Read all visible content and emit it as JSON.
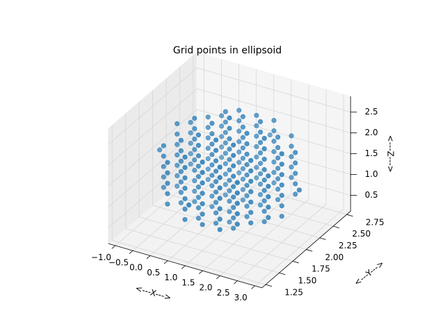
{
  "chart_data": {
    "type": "scatter3d",
    "title": "Grid points in ellipsoid",
    "xlabel": "<---X--->",
    "ylabel": "<---Y--->",
    "zlabel": "<---Z--->",
    "color": "#1f77b4",
    "xlim": [
      -1.2,
      3.2
    ],
    "ylim": [
      1.18,
      2.82
    ],
    "zlim": [
      0.12,
      2.88
    ],
    "xticks": [
      {
        "value": -1,
        "label": "−1.0"
      },
      {
        "value": -0.5,
        "label": "−0.5"
      },
      {
        "value": 0,
        "label": "0.0"
      },
      0.5,
      {
        "value": 1,
        "label": "1.0"
      },
      1.5,
      {
        "value": 2,
        "label": "2.0"
      },
      2.5,
      {
        "value": 3,
        "label": "3.0"
      }
    ],
    "yticks": [
      1.25,
      {
        "value": 1.5,
        "label": "1.50"
      },
      1.75,
      {
        "value": 2,
        "label": "2.00"
      },
      2.25,
      {
        "value": 2.5,
        "label": "2.50"
      },
      2.75
    ],
    "zticks": [
      0.5,
      {
        "value": 1,
        "label": "1.0"
      },
      1.5,
      {
        "value": 2,
        "label": "2.0"
      },
      2.5
    ],
    "grid": true,
    "x": [
      1,
      0,
      0,
      0,
      0,
      0,
      0.5,
      0.5,
      0.5,
      0.5,
      0.5,
      0.5,
      0.5,
      1,
      1,
      1,
      1,
      1,
      1,
      1,
      1.5,
      1.5,
      1.5,
      1.5,
      1.5,
      1.5,
      1.5,
      2,
      2,
      2,
      2,
      2,
      -0.5,
      -0.5,
      -0.5,
      -0.5,
      -0.5,
      0,
      0,
      0,
      0,
      0,
      0,
      0,
      0.5,
      0.5,
      0.5,
      0.5,
      0.5,
      0.5,
      0.5,
      0.5,
      0.5,
      1,
      1,
      1,
      1,
      1,
      1,
      1,
      1,
      1,
      1.5,
      1.5,
      1.5,
      1.5,
      1.5,
      1.5,
      1.5,
      1.5,
      1.5,
      2,
      2,
      2,
      2,
      2,
      2,
      2,
      2.5,
      2.5,
      2.5,
      2.5,
      2.5,
      -1,
      -0.5,
      -0.5,
      -0.5,
      -0.5,
      -0.5,
      -0.5,
      -0.5,
      0,
      0,
      0,
      0,
      0,
      0,
      0,
      0,
      0,
      0.5,
      0.5,
      0.5,
      0.5,
      0.5,
      0.5,
      0.5,
      0.5,
      0.5,
      1,
      1,
      1,
      1,
      1,
      1,
      1,
      1,
      1,
      1,
      1,
      1.5,
      1.5,
      1.5,
      1.5,
      1.5,
      1.5,
      1.5,
      1.5,
      1.5,
      2,
      2,
      2,
      2,
      2,
      2,
      2,
      2,
      2,
      2.5,
      2.5,
      2.5,
      2.5,
      2.5,
      2.5,
      2.5,
      3,
      -0.5,
      -0.5,
      -0.5,
      -0.5,
      -0.5,
      0,
      0,
      0,
      0,
      0,
      0,
      0,
      0.5,
      0.5,
      0.5,
      0.5,
      0.5,
      0.5,
      0.5,
      0.5,
      0.5,
      1,
      1,
      1,
      1,
      1,
      1,
      1,
      1,
      1,
      1.5,
      1.5,
      1.5,
      1.5,
      1.5,
      1.5,
      1.5,
      1.5,
      1.5,
      2,
      2,
      2,
      2,
      2,
      2,
      2,
      2.5,
      2.5,
      2.5,
      2.5,
      2.5,
      0,
      0,
      0,
      0,
      0,
      0.5,
      0.5,
      0.5,
      0.5,
      0.5,
      0.5,
      0.5,
      1,
      1,
      1,
      1,
      1,
      1,
      1,
      1.5,
      1.5,
      1.5,
      1.5,
      1.5,
      1.5,
      1.5,
      2,
      2,
      2,
      2,
      2,
      1
    ],
    "y": [
      1.25,
      1.5,
      1.5,
      1.5,
      1.5,
      1.5,
      1.5,
      1.5,
      1.5,
      1.5,
      1.5,
      1.5,
      1.5,
      1.5,
      1.5,
      1.5,
      1.5,
      1.5,
      1.5,
      1.5,
      1.5,
      1.5,
      1.5,
      1.5,
      1.5,
      1.5,
      1.5,
      1.5,
      1.5,
      1.5,
      1.5,
      1.5,
      1.75,
      1.75,
      1.75,
      1.75,
      1.75,
      1.75,
      1.75,
      1.75,
      1.75,
      1.75,
      1.75,
      1.75,
      1.75,
      1.75,
      1.75,
      1.75,
      1.75,
      1.75,
      1.75,
      1.75,
      1.75,
      1.75,
      1.75,
      1.75,
      1.75,
      1.75,
      1.75,
      1.75,
      1.75,
      1.75,
      1.75,
      1.75,
      1.75,
      1.75,
      1.75,
      1.75,
      1.75,
      1.75,
      1.75,
      1.75,
      1.75,
      1.75,
      1.75,
      1.75,
      1.75,
      1.75,
      1.75,
      1.75,
      1.75,
      1.75,
      1.75,
      2,
      2,
      2,
      2,
      2,
      2,
      2,
      2,
      2,
      2,
      2,
      2,
      2,
      2,
      2,
      2,
      2,
      2,
      2,
      2,
      2,
      2,
      2,
      2,
      2,
      2,
      2,
      2,
      2,
      2,
      2,
      2,
      2,
      2,
      2,
      2,
      2,
      2,
      2,
      2,
      2,
      2,
      2,
      2,
      2,
      2,
      2,
      2,
      2,
      2,
      2,
      2,
      2,
      2,
      2,
      2,
      2,
      2,
      2,
      2,
      2,
      2,
      2,
      2.25,
      2.25,
      2.25,
      2.25,
      2.25,
      2.25,
      2.25,
      2.25,
      2.25,
      2.25,
      2.25,
      2.25,
      2.25,
      2.25,
      2.25,
      2.25,
      2.25,
      2.25,
      2.25,
      2.25,
      2.25,
      2.25,
      2.25,
      2.25,
      2.25,
      2.25,
      2.25,
      2.25,
      2.25,
      2.25,
      2.25,
      2.25,
      2.25,
      2.25,
      2.25,
      2.25,
      2.25,
      2.25,
      2.25,
      2.25,
      2.25,
      2.25,
      2.25,
      2.25,
      2.25,
      2.25,
      2.25,
      2.25,
      2.25,
      2.25,
      2.25,
      2.5,
      2.5,
      2.5,
      2.5,
      2.5,
      2.5,
      2.5,
      2.5,
      2.5,
      2.5,
      2.5,
      2.5,
      2.5,
      2.5,
      2.5,
      2.5,
      2.5,
      2.5,
      2.5,
      2.5,
      2.5,
      2.5,
      2.5,
      2.5,
      2.5,
      2.5,
      2.5,
      2.5,
      2.5,
      2.5,
      2.5,
      2.75
    ],
    "z": [
      1.5,
      1,
      1.25,
      1.5,
      1.75,
      2,
      0.75,
      1,
      1.25,
      1.5,
      1.75,
      2,
      2.25,
      0.75,
      1,
      1.25,
      1.5,
      1.75,
      2,
      2.25,
      0.75,
      1,
      1.25,
      1.5,
      1.75,
      2,
      2.25,
      1,
      1.25,
      1.5,
      1.75,
      2,
      1,
      1.25,
      1.5,
      1.75,
      2,
      0.75,
      1,
      1.25,
      1.5,
      1.75,
      2,
      2.25,
      0.5,
      0.75,
      1,
      1.25,
      1.5,
      1.75,
      2,
      2.25,
      2.5,
      0.5,
      0.75,
      1,
      1.25,
      1.5,
      1.75,
      2,
      2.25,
      2.5,
      0.5,
      0.75,
      1,
      1.25,
      1.5,
      1.75,
      2,
      2.25,
      2.5,
      0.75,
      1,
      1.25,
      1.5,
      1.75,
      2,
      2.25,
      1,
      1.25,
      1.5,
      1.75,
      2,
      1.5,
      0.75,
      1,
      1.25,
      1.5,
      1.75,
      2,
      2.25,
      0.5,
      0.75,
      1,
      1.25,
      1.5,
      1.75,
      2,
      2.25,
      2.5,
      0.5,
      0.75,
      1,
      1.25,
      1.5,
      1.75,
      2,
      2.25,
      2.5,
      0.25,
      0.5,
      0.75,
      1,
      1.25,
      1.5,
      1.75,
      2,
      2.25,
      2.5,
      2.75,
      0.5,
      0.75,
      1,
      1.25,
      1.5,
      1.75,
      2,
      2.25,
      2.5,
      0.5,
      0.75,
      1,
      1.25,
      1.5,
      1.75,
      2,
      2.25,
      2.5,
      0.75,
      1,
      1.25,
      1.5,
      1.75,
      2,
      2.25,
      1.5,
      1,
      1.25,
      1.5,
      1.75,
      2,
      0.75,
      1,
      1.25,
      1.5,
      1.75,
      2,
      2.25,
      0.5,
      0.75,
      1,
      1.25,
      1.5,
      1.75,
      2,
      2.25,
      2.5,
      0.5,
      0.75,
      1,
      1.25,
      1.5,
      1.75,
      2,
      2.25,
      2.5,
      0.5,
      0.75,
      1,
      1.25,
      1.5,
      1.75,
      2,
      2.25,
      2.5,
      0.75,
      1,
      1.25,
      1.5,
      1.75,
      2,
      2.25,
      1,
      1.25,
      1.5,
      1.75,
      2,
      1,
      1.25,
      1.5,
      1.75,
      2,
      0.75,
      1,
      1.25,
      1.5,
      1.75,
      2,
      2.25,
      0.75,
      1,
      1.25,
      1.5,
      1.75,
      2,
      2.25,
      0.75,
      1,
      1.25,
      1.5,
      1.75,
      2,
      2.25,
      1,
      1.25,
      1.5,
      1.75,
      2,
      1.5
    ]
  }
}
